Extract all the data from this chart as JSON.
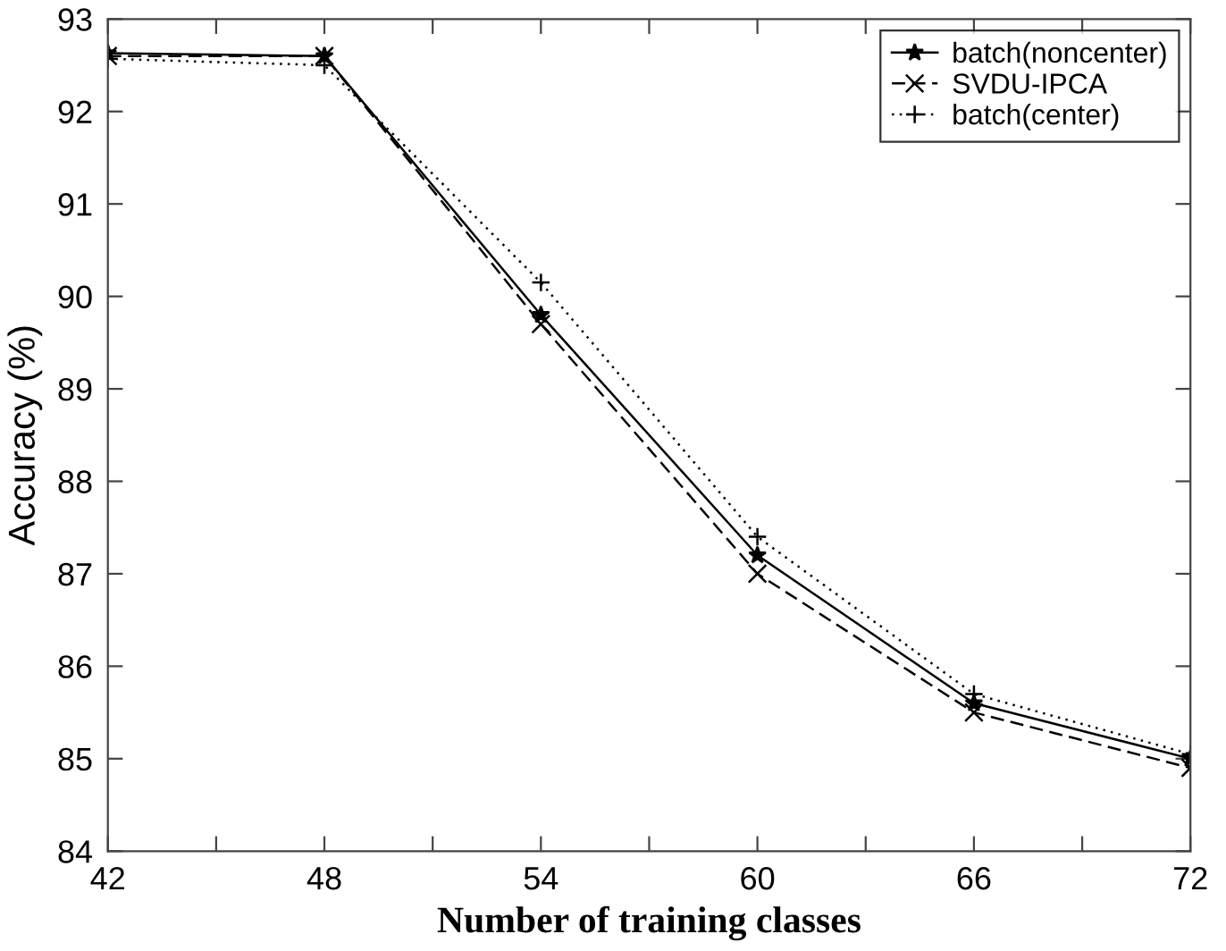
{
  "chart_data": {
    "type": "line",
    "xlabel": "Number of training classes",
    "ylabel": "Accuracy (%)",
    "x": [
      42,
      48,
      54,
      60,
      66,
      72
    ],
    "series": [
      {
        "name": "batch(noncenter)",
        "color": "#000000",
        "marker": "star",
        "line_style": "solid",
        "values": [
          92.63,
          92.6,
          89.8,
          87.2,
          85.6,
          85.0
        ]
      },
      {
        "name": "SVDU-IPCA",
        "color": "#000000",
        "marker": "cross",
        "line_style": "dashed",
        "values": [
          92.6,
          92.6,
          89.7,
          87.0,
          85.5,
          84.9
        ]
      },
      {
        "name": "batch(center)",
        "color": "#000000",
        "marker": "plus",
        "line_style": "dotted",
        "values": [
          92.57,
          92.5,
          90.15,
          87.4,
          85.7,
          85.05
        ]
      }
    ],
    "xlim": [
      42,
      72
    ],
    "ylim": [
      84,
      93
    ],
    "xticks": [
      42,
      {
        "value": 45,
        "label": null
      },
      48,
      {
        "value": 51,
        "label": null
      },
      54,
      {
        "value": 57,
        "label": null
      },
      60,
      {
        "value": 63,
        "label": null
      },
      66,
      {
        "value": 69,
        "label": null
      },
      72
    ],
    "yticks": [
      84,
      85,
      86,
      87,
      88,
      89,
      90,
      91,
      92,
      93
    ],
    "grid": false,
    "legend": "top right"
  }
}
